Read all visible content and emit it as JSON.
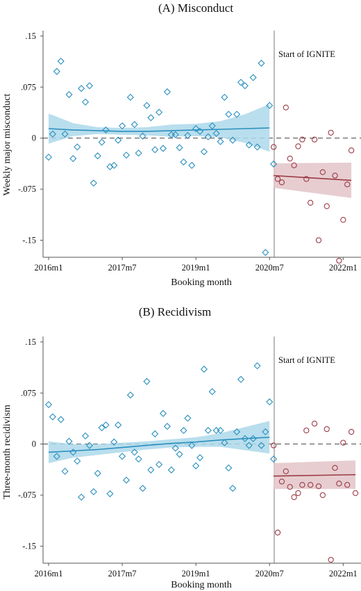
{
  "colors": {
    "pre": "#2a8fbf",
    "pre_band": "#add8ea",
    "post": "#9b3a45",
    "post_band": "#e3c4c8",
    "axis": "#555555",
    "zero": "#444444"
  },
  "chart_data": [
    {
      "type": "scatter",
      "title": "(A) Misconduct",
      "xlabel": "Booking month",
      "ylabel": "Weekly major misconduct",
      "x_ticks": [
        "2016m1",
        "2017m7",
        "2019m1",
        "2020m7",
        "2022m1"
      ],
      "y_ticks": [
        ".15",
        ".075",
        "0",
        "-.075",
        "-.15"
      ],
      "y_tick_values": [
        0.15,
        0.075,
        0,
        -0.075,
        -0.15
      ],
      "ylim": [
        -0.175,
        0.158
      ],
      "xlim": [
        0,
        75
      ],
      "annotation": "Start of IGNITE",
      "cutoff_x": 54,
      "pre_points": [
        [
          0,
          -0.028
        ],
        [
          1,
          0.006
        ],
        [
          2,
          0.098
        ],
        [
          3,
          0.113
        ],
        [
          4,
          0.006
        ],
        [
          5,
          0.064
        ],
        [
          6,
          -0.03
        ],
        [
          7,
          -0.013
        ],
        [
          8,
          0.073
        ],
        [
          9,
          0.053
        ],
        [
          10,
          0.077
        ],
        [
          11,
          -0.066
        ],
        [
          12,
          -0.026
        ],
        [
          13,
          -0.006
        ],
        [
          14,
          0.012
        ],
        [
          15,
          -0.042
        ],
        [
          16,
          -0.04
        ],
        [
          17,
          -0.003
        ],
        [
          18,
          0.018
        ],
        [
          19,
          -0.025
        ],
        [
          20,
          0.06
        ],
        [
          21,
          0.02
        ],
        [
          22,
          -0.022
        ],
        [
          23,
          0.003
        ],
        [
          24,
          0.048
        ],
        [
          25,
          0.03
        ],
        [
          26,
          -0.017
        ],
        [
          27,
          0.038
        ],
        [
          28,
          -0.015
        ],
        [
          29,
          0.068
        ],
        [
          30,
          0.005
        ],
        [
          31,
          0.005
        ],
        [
          32,
          -0.014
        ],
        [
          33,
          -0.035
        ],
        [
          34,
          0.004
        ],
        [
          35,
          -0.04
        ],
        [
          36,
          0.014
        ],
        [
          37,
          0.01
        ],
        [
          38,
          -0.02
        ],
        [
          39,
          0.002
        ],
        [
          40,
          0.018
        ],
        [
          41,
          0.007
        ],
        [
          42,
          -0.005
        ],
        [
          43,
          0.06
        ],
        [
          44,
          0.035
        ],
        [
          45,
          -0.003
        ],
        [
          46,
          0.035
        ],
        [
          47,
          0.082
        ],
        [
          48,
          0.077
        ],
        [
          49,
          -0.01
        ],
        [
          50,
          0.089
        ],
        [
          51,
          -0.013
        ],
        [
          52,
          0.11
        ],
        [
          53,
          -0.168
        ],
        [
          54,
          0.048
        ],
        [
          55,
          -0.038
        ]
      ],
      "post_points": [
        [
          55,
          -0.013
        ],
        [
          56,
          -0.06
        ],
        [
          57,
          -0.065
        ],
        [
          58,
          0.045
        ],
        [
          59,
          -0.03
        ],
        [
          60,
          -0.04
        ],
        [
          61,
          -0.012
        ],
        [
          62,
          -0.002
        ],
        [
          63,
          -0.06
        ],
        [
          64,
          -0.095
        ],
        [
          65,
          -0.002
        ],
        [
          66,
          -0.15
        ],
        [
          67,
          -0.05
        ],
        [
          68,
          -0.1
        ],
        [
          69,
          0.008
        ],
        [
          70,
          -0.055
        ],
        [
          71,
          -0.18
        ],
        [
          72,
          -0.12
        ],
        [
          73,
          -0.068
        ],
        [
          74,
          -0.018
        ]
      ],
      "pre_fit": {
        "x": [
          0,
          6,
          12,
          18,
          24,
          30,
          36,
          42,
          48,
          54
        ],
        "y": [
          0.014,
          0.012,
          0.011,
          0.01,
          0.01,
          0.011,
          0.012,
          0.013,
          0.014,
          0.015
        ],
        "lo": [
          -0.008,
          0.003,
          0.006,
          0.005,
          0.004,
          0.002,
          0.003,
          0.001,
          -0.007,
          -0.02
        ],
        "hi": [
          0.036,
          0.022,
          0.016,
          0.015,
          0.016,
          0.02,
          0.021,
          0.025,
          0.035,
          0.05
        ]
      },
      "post_fit": {
        "x": [
          55,
          74
        ],
        "y": [
          -0.055,
          -0.062
        ],
        "lo": [
          -0.073,
          -0.088
        ],
        "hi": [
          -0.037,
          -0.036
        ]
      }
    },
    {
      "type": "scatter",
      "title": "(B) Recidivism",
      "xlabel": "Booking month",
      "ylabel": "Three-month recidivism",
      "x_ticks": [
        "2016m1",
        "2017m7",
        "2019m1",
        "2020m7",
        "2022m1"
      ],
      "y_ticks": [
        ".15",
        ".075",
        "0",
        "-.075",
        "-.15"
      ],
      "y_tick_values": [
        0.15,
        0.075,
        0,
        -0.075,
        -0.15
      ],
      "ylim": [
        -0.175,
        0.158
      ],
      "xlim": [
        0,
        75
      ],
      "annotation": "Start of IGNITE",
      "cutoff_x": 54,
      "pre_points": [
        [
          0,
          0.058
        ],
        [
          1,
          0.04
        ],
        [
          2,
          -0.018
        ],
        [
          3,
          0.036
        ],
        [
          4,
          -0.04
        ],
        [
          5,
          0.004
        ],
        [
          6,
          -0.012
        ],
        [
          7,
          -0.025
        ],
        [
          8,
          -0.078
        ],
        [
          9,
          0.012
        ],
        [
          10,
          -0.002
        ],
        [
          11,
          -0.07
        ],
        [
          12,
          -0.043
        ],
        [
          13,
          0.024
        ],
        [
          14,
          0.028
        ],
        [
          15,
          -0.073
        ],
        [
          16,
          0.003
        ],
        [
          17,
          0.028
        ],
        [
          18,
          -0.018
        ],
        [
          19,
          -0.053
        ],
        [
          20,
          0.072
        ],
        [
          21,
          -0.012
        ],
        [
          22,
          -0.022
        ],
        [
          23,
          -0.065
        ],
        [
          24,
          0.092
        ],
        [
          25,
          -0.038
        ],
        [
          26,
          0.015
        ],
        [
          27,
          -0.03
        ],
        [
          28,
          0.045
        ],
        [
          29,
          0.026
        ],
        [
          30,
          -0.038
        ],
        [
          31,
          -0.006
        ],
        [
          32,
          -0.015
        ],
        [
          33,
          0.02
        ],
        [
          34,
          0.038
        ],
        [
          35,
          -0.002
        ],
        [
          36,
          -0.032
        ],
        [
          37,
          -0.02
        ],
        [
          38,
          0.11
        ],
        [
          39,
          0.02
        ],
        [
          40,
          0.077
        ],
        [
          41,
          0.02
        ],
        [
          42,
          0.02
        ],
        [
          43,
          0.002
        ],
        [
          44,
          -0.035
        ],
        [
          45,
          -0.065
        ],
        [
          46,
          0.018
        ],
        [
          47,
          0.095
        ],
        [
          48,
          0.008
        ],
        [
          49,
          -0.002
        ],
        [
          50,
          0.008
        ],
        [
          51,
          0.115
        ],
        [
          52,
          -0.002
        ],
        [
          53,
          0.018
        ],
        [
          54,
          0.062
        ],
        [
          55,
          -0.022
        ]
      ],
      "post_points": [
        [
          55,
          -0.002
        ],
        [
          56,
          -0.13
        ],
        [
          57,
          -0.055
        ],
        [
          58,
          -0.04
        ],
        [
          59,
          -0.063
        ],
        [
          60,
          -0.078
        ],
        [
          61,
          -0.072
        ],
        [
          62,
          -0.06
        ],
        [
          63,
          0.02
        ],
        [
          64,
          -0.06
        ],
        [
          65,
          0.03
        ],
        [
          66,
          -0.062
        ],
        [
          67,
          -0.075
        ],
        [
          68,
          0.022
        ],
        [
          69,
          -0.17
        ],
        [
          70,
          -0.035
        ],
        [
          71,
          -0.058
        ],
        [
          72,
          0.002
        ],
        [
          73,
          -0.06
        ],
        [
          74,
          0.018
        ],
        [
          75,
          -0.072
        ]
      ],
      "pre_fit": {
        "x": [
          0,
          6,
          12,
          18,
          24,
          30,
          36,
          42,
          48,
          54
        ],
        "y": [
          -0.012,
          -0.01,
          -0.008,
          -0.005,
          -0.002,
          0.001,
          0.003,
          0.006,
          0.008,
          0.01
        ],
        "lo": [
          -0.028,
          -0.02,
          -0.016,
          -0.012,
          -0.008,
          -0.005,
          -0.004,
          -0.004,
          -0.009,
          -0.014
        ],
        "hi": [
          0.004,
          0.0,
          0.0,
          0.002,
          0.004,
          0.007,
          0.01,
          0.016,
          0.025,
          0.034
        ]
      },
      "post_fit": {
        "x": [
          55,
          75
        ],
        "y": [
          -0.047,
          -0.045
        ],
        "lo": [
          -0.066,
          -0.066
        ],
        "hi": [
          -0.028,
          -0.024
        ]
      }
    }
  ]
}
